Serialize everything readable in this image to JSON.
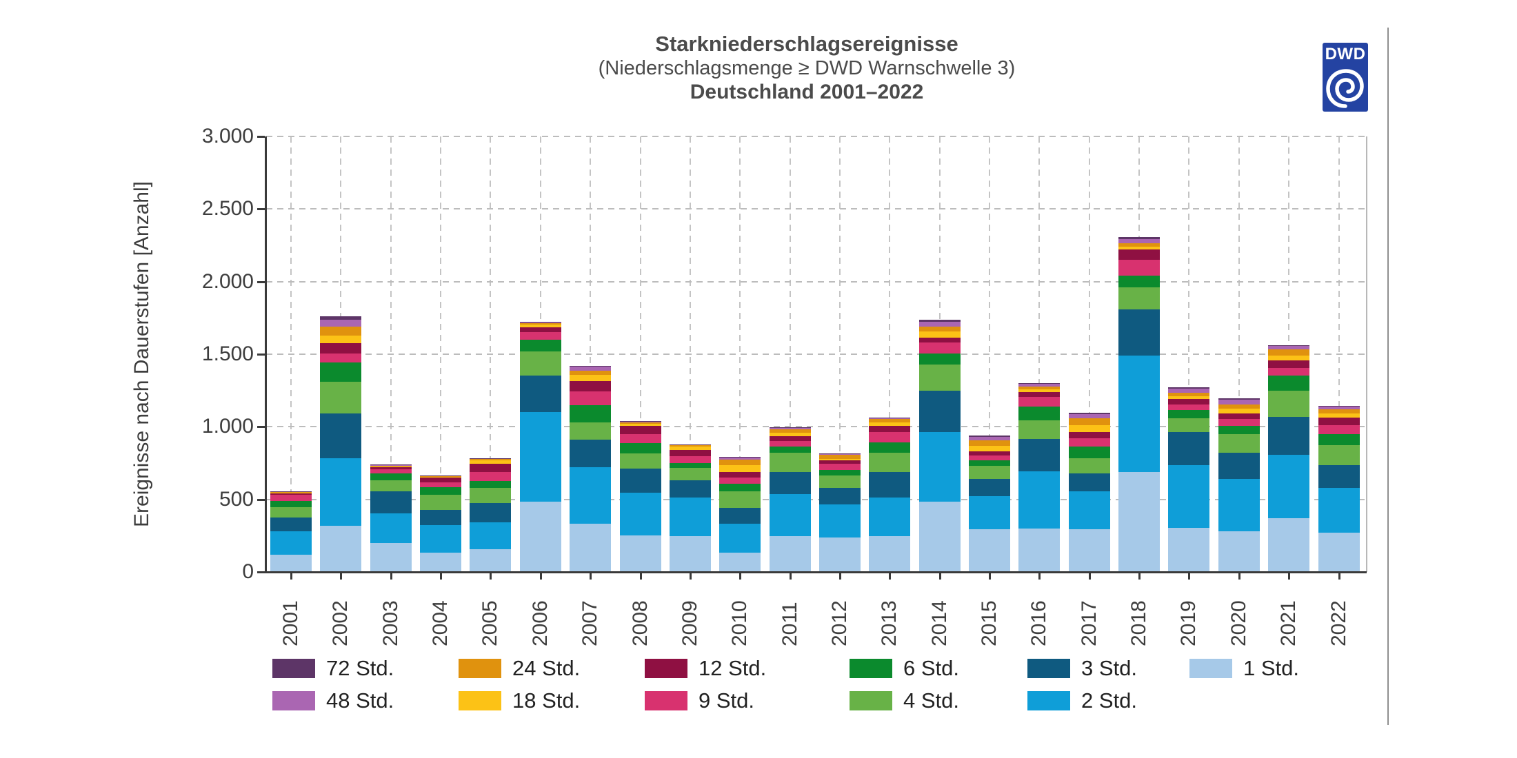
{
  "header": {
    "title": "Starkniederschlagsereignisse",
    "subtitle": "(Niederschlagsmenge ≥ DWD Warnschwelle 3)",
    "region_period": "Deutschland 2001–2022"
  },
  "logo": {
    "text": "DWD",
    "color": "#2443a2"
  },
  "axes": {
    "y_title": "Ereignisse nach Dauerstufen [Anzahl]",
    "y_tick_values": [
      0,
      500,
      1000,
      1500,
      2000,
      2500,
      3000
    ],
    "y_tick_labels": [
      "0",
      "500",
      "1.000",
      "1.500",
      "2.000",
      "2.500",
      "3.000"
    ]
  },
  "colors": {
    "axis": "#3a3a3a",
    "grid": "#bcbcbc",
    "text": "#3d3d3d",
    "title_text": "#4b4b4b",
    "divider": "#8f8f8f"
  },
  "chart_data": {
    "type": "bar",
    "stacked": true,
    "title": "Starkniederschlagsereignisse",
    "subtitle": "(Niederschlagsmenge ≥ DWD Warnschwelle 3)",
    "region_period": "Deutschland 2001–2022",
    "ylabel": "Ereignisse nach Dauerstufen [Anzahl]",
    "ylim": [
      0,
      3000
    ],
    "grid": "dashed",
    "legend_position": "bottom",
    "categories": [
      "2001",
      "2002",
      "2003",
      "2004",
      "2005",
      "2006",
      "2007",
      "2008",
      "2009",
      "2010",
      "2011",
      "2012",
      "2013",
      "2014",
      "2015",
      "2016",
      "2017",
      "2018",
      "2019",
      "2020",
      "2021",
      "2022"
    ],
    "series": [
      {
        "name": "1 Std.",
        "color": "#a6c9e8",
        "values": [
          120,
          317,
          198,
          134,
          158,
          483,
          332,
          253,
          245,
          134,
          245,
          237,
          245,
          486,
          295,
          300,
          293,
          690,
          305,
          280,
          370,
          270
        ]
      },
      {
        "name": "2 Std.",
        "color": "#0f9ed8",
        "values": [
          158,
          466,
          206,
          190,
          182,
          617,
          388,
          293,
          269,
          198,
          293,
          230,
          269,
          479,
          225,
          395,
          261,
          800,
          430,
          360,
          437,
          310
        ]
      },
      {
        "name": "3 Std.",
        "color": "#0f5a80",
        "values": [
          98,
          309,
          150,
          103,
          135,
          253,
          190,
          166,
          119,
          111,
          150,
          111,
          174,
          285,
          120,
          222,
          126,
          320,
          230,
          183,
          260,
          155
        ]
      },
      {
        "name": "4 Std.",
        "color": "#68b247",
        "values": [
          68,
          217,
          79,
          103,
          103,
          166,
          119,
          103,
          82,
          111,
          135,
          87,
          132,
          180,
          90,
          127,
          103,
          150,
          95,
          127,
          182,
          140
        ]
      },
      {
        "name": "6 Std.",
        "color": "#0b8a2d",
        "values": [
          43,
          134,
          47,
          55,
          47,
          82,
          118,
          71,
          36,
          55,
          39,
          39,
          74,
          75,
          40,
          94,
          79,
          80,
          55,
          55,
          103,
          75
        ]
      },
      {
        "name": "9 Std.",
        "color": "#d8326f",
        "values": [
          44,
          60,
          27,
          32,
          63,
          53,
          95,
          63,
          48,
          40,
          40,
          40,
          71,
          75,
          30,
          70,
          59,
          110,
          40,
          47,
          55,
          63
        ]
      },
      {
        "name": "12 Std.",
        "color": "#8f1042",
        "values": [
          12,
          72,
          15,
          32,
          56,
          31,
          71,
          56,
          40,
          39,
          31,
          23,
          40,
          35,
          30,
          30,
          44,
          70,
          36,
          40,
          50,
          50
        ]
      },
      {
        "name": "18 Std.",
        "color": "#fcc216",
        "values": [
          5,
          52,
          6,
          6,
          23,
          19,
          44,
          16,
          23,
          48,
          24,
          13,
          27,
          40,
          38,
          20,
          48,
          22,
          19,
          35,
          35,
          28
        ]
      },
      {
        "name": "24 Std.",
        "color": "#e0920e",
        "values": [
          4,
          63,
          6,
          5,
          10,
          10,
          28,
          10,
          10,
          39,
          27,
          27,
          20,
          35,
          38,
          20,
          47,
          22,
          24,
          28,
          40,
          27
        ]
      },
      {
        "name": "48 Std.",
        "color": "#aa66b2",
        "values": [
          3,
          47,
          3,
          3,
          4,
          7,
          28,
          6,
          4,
          14,
          8,
          5,
          9,
          35,
          26,
          18,
          25,
          30,
          30,
          32,
          25,
          22
        ]
      },
      {
        "name": "72 Std.",
        "color": "#5d3567",
        "values": [
          2,
          23,
          2,
          2,
          2,
          4,
          6,
          3,
          2,
          2,
          5,
          3,
          4,
          12,
          8,
          6,
          10,
          15,
          10,
          8,
          6,
          6
        ]
      }
    ],
    "legend_rows": [
      [
        "72 Std.",
        "24 Std.",
        "12 Std.",
        "6 Std.",
        "3 Std.",
        "1 Std."
      ],
      [
        "48 Std.",
        "18 Std.",
        "9 Std.",
        "4 Std.",
        "2 Std."
      ]
    ]
  }
}
